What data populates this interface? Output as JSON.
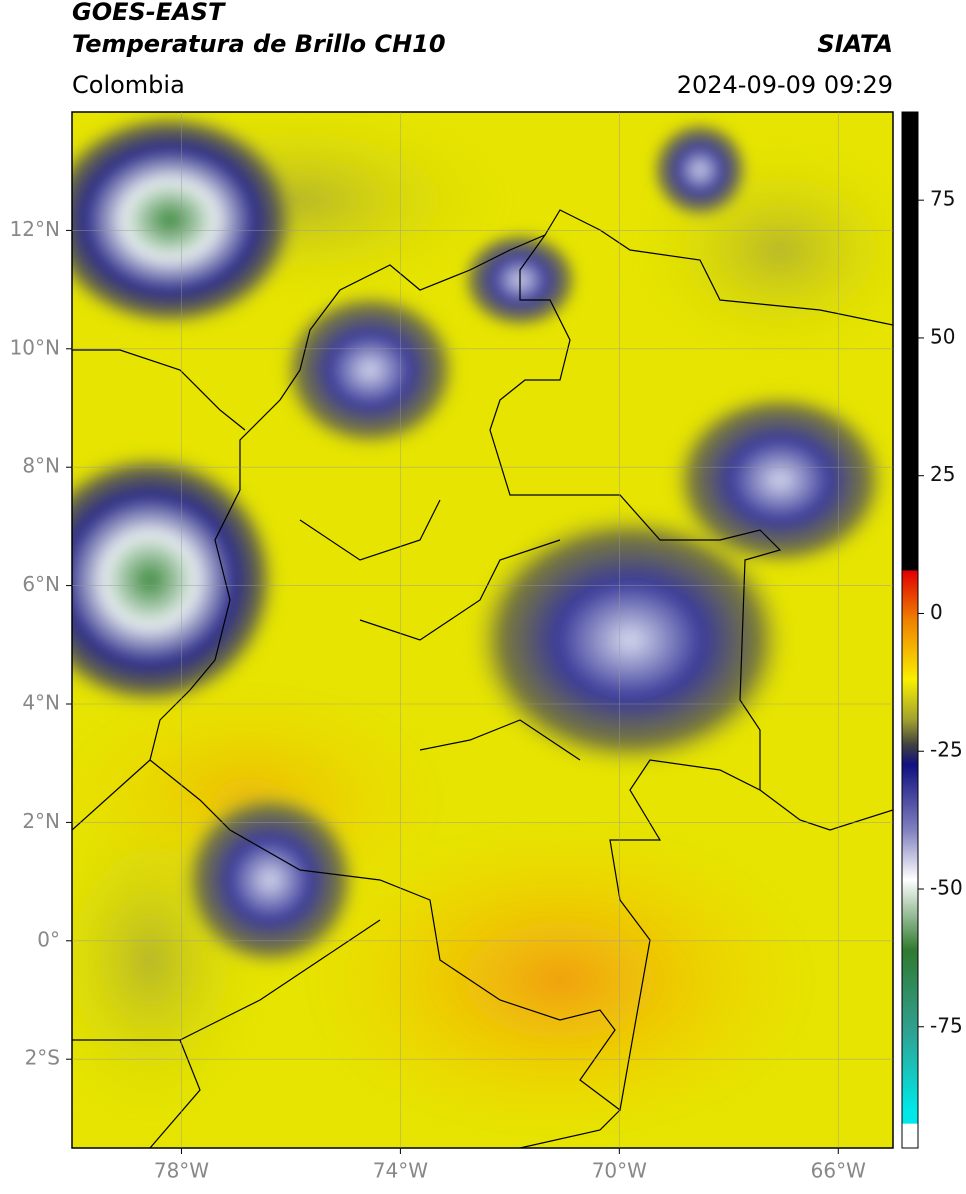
{
  "header": {
    "title_line1": "GOES-EAST",
    "title_line2": "Temperatura de Brillo CH10",
    "source": "SIATA",
    "region": "Colombia",
    "timestamp": "2024-09-09 09:29"
  },
  "map": {
    "lonlim": [
      -80,
      -65
    ],
    "latlim": [
      -3.5,
      14
    ],
    "lonticks": [
      {
        "value": -78,
        "label": "78°W"
      },
      {
        "value": -74,
        "label": "74°W"
      },
      {
        "value": -70,
        "label": "70°W"
      },
      {
        "value": -66,
        "label": "66°W"
      }
    ],
    "latticks": [
      {
        "value": 12,
        "label": "12°N"
      },
      {
        "value": 10,
        "label": "10°N"
      },
      {
        "value": 8,
        "label": "8°N"
      },
      {
        "value": 6,
        "label": "6°N"
      },
      {
        "value": 4,
        "label": "4°N"
      },
      {
        "value": 2,
        "label": "2°N"
      },
      {
        "value": 0,
        "label": "0°"
      },
      {
        "value": -2,
        "label": "2°S"
      }
    ]
  },
  "colorbar": {
    "lim": [
      -97,
      91
    ],
    "ticks": [
      75,
      50,
      25,
      0,
      -25,
      -50,
      -75
    ]
  }
}
